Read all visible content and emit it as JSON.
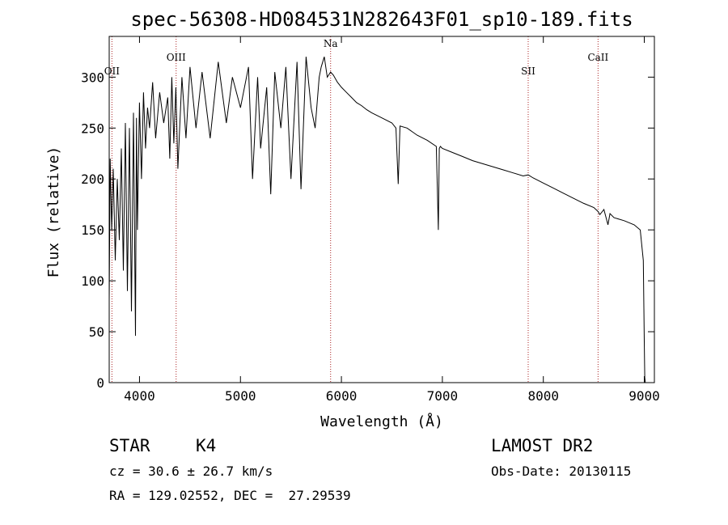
{
  "chart_data": {
    "type": "line",
    "title": "spec-56308-HD084531N282643F01_sp10-189.fits",
    "xlabel": "Wavelength (Å)",
    "ylabel": "Flux (relative)",
    "xlim": [
      3700,
      9100
    ],
    "ylim": [
      0,
      340
    ],
    "xticks": [
      4000,
      5000,
      6000,
      7000,
      8000,
      9000
    ],
    "yticks": [
      0,
      50,
      100,
      150,
      200,
      250,
      300
    ],
    "grid": false,
    "line_color": "#000000",
    "marker_color": "#aa2222",
    "lines": [
      {
        "name": "OII",
        "x": 3727
      },
      {
        "name": "OIII",
        "x": 4363
      },
      {
        "name": "Na",
        "x": 5893
      },
      {
        "name": "SII",
        "x": 7850
      },
      {
        "name": "CaII",
        "x": 8542
      }
    ],
    "series": [
      {
        "x": [
          3700,
          3710,
          3725,
          3740,
          3760,
          3780,
          3800,
          3820,
          3840,
          3860,
          3880,
          3900,
          3920,
          3940,
          3960,
          3970,
          3980,
          4000,
          4020,
          4040,
          4060,
          4080,
          4100,
          4130,
          4160,
          4200,
          4240,
          4280,
          4300,
          4320,
          4340,
          4360,
          4380,
          4420,
          4460,
          4500,
          4560,
          4620,
          4700,
          4780,
          4860,
          4920,
          5000,
          5080,
          5120,
          5170,
          5200,
          5260,
          5300,
          5340,
          5400,
          5450,
          5500,
          5560,
          5600,
          5650,
          5700,
          5740,
          5780,
          5800,
          5830,
          5860,
          5893,
          5920,
          5960,
          6000,
          6050,
          6100,
          6150,
          6200,
          6250,
          6300,
          6400,
          6500,
          6540,
          6563,
          6580,
          6650,
          6750,
          6850,
          6940,
          6960,
          6970,
          6980,
          7000,
          7100,
          7200,
          7300,
          7400,
          7500,
          7600,
          7700,
          7800,
          7850,
          7900,
          8000,
          8100,
          8200,
          8300,
          8400,
          8500,
          8542,
          8560,
          8600,
          8640,
          8660,
          8700,
          8800,
          8900,
          8960,
          8990,
          9000,
          9005,
          9010
        ],
        "y": [
          80,
          220,
          150,
          210,
          120,
          200,
          140,
          230,
          110,
          255,
          90,
          250,
          70,
          265,
          46,
          260,
          150,
          275,
          200,
          285,
          230,
          270,
          250,
          295,
          240,
          285,
          255,
          280,
          220,
          300,
          235,
          290,
          210,
          300,
          240,
          310,
          250,
          305,
          240,
          315,
          255,
          300,
          270,
          310,
          200,
          300,
          230,
          290,
          185,
          305,
          250,
          310,
          200,
          315,
          190,
          320,
          270,
          250,
          300,
          310,
          320,
          300,
          305,
          302,
          295,
          290,
          285,
          280,
          275,
          272,
          268,
          265,
          260,
          255,
          250,
          195,
          252,
          250,
          243,
          238,
          232,
          150,
          230,
          232,
          230,
          226,
          222,
          218,
          215,
          212,
          209,
          206,
          203,
          204,
          201,
          196,
          191,
          186,
          181,
          176,
          172,
          168,
          165,
          170,
          155,
          166,
          162,
          159,
          155,
          150,
          120,
          40,
          5,
          0
        ]
      }
    ]
  },
  "info": {
    "object_class": "STAR",
    "subclass": "K4",
    "survey": "LAMOST DR2",
    "cz": "cz = 30.6 ± 26.7 km/s",
    "obs_date": "Obs-Date: 20130115",
    "radec": "RA = 129.02552, DEC =  27.29539"
  }
}
